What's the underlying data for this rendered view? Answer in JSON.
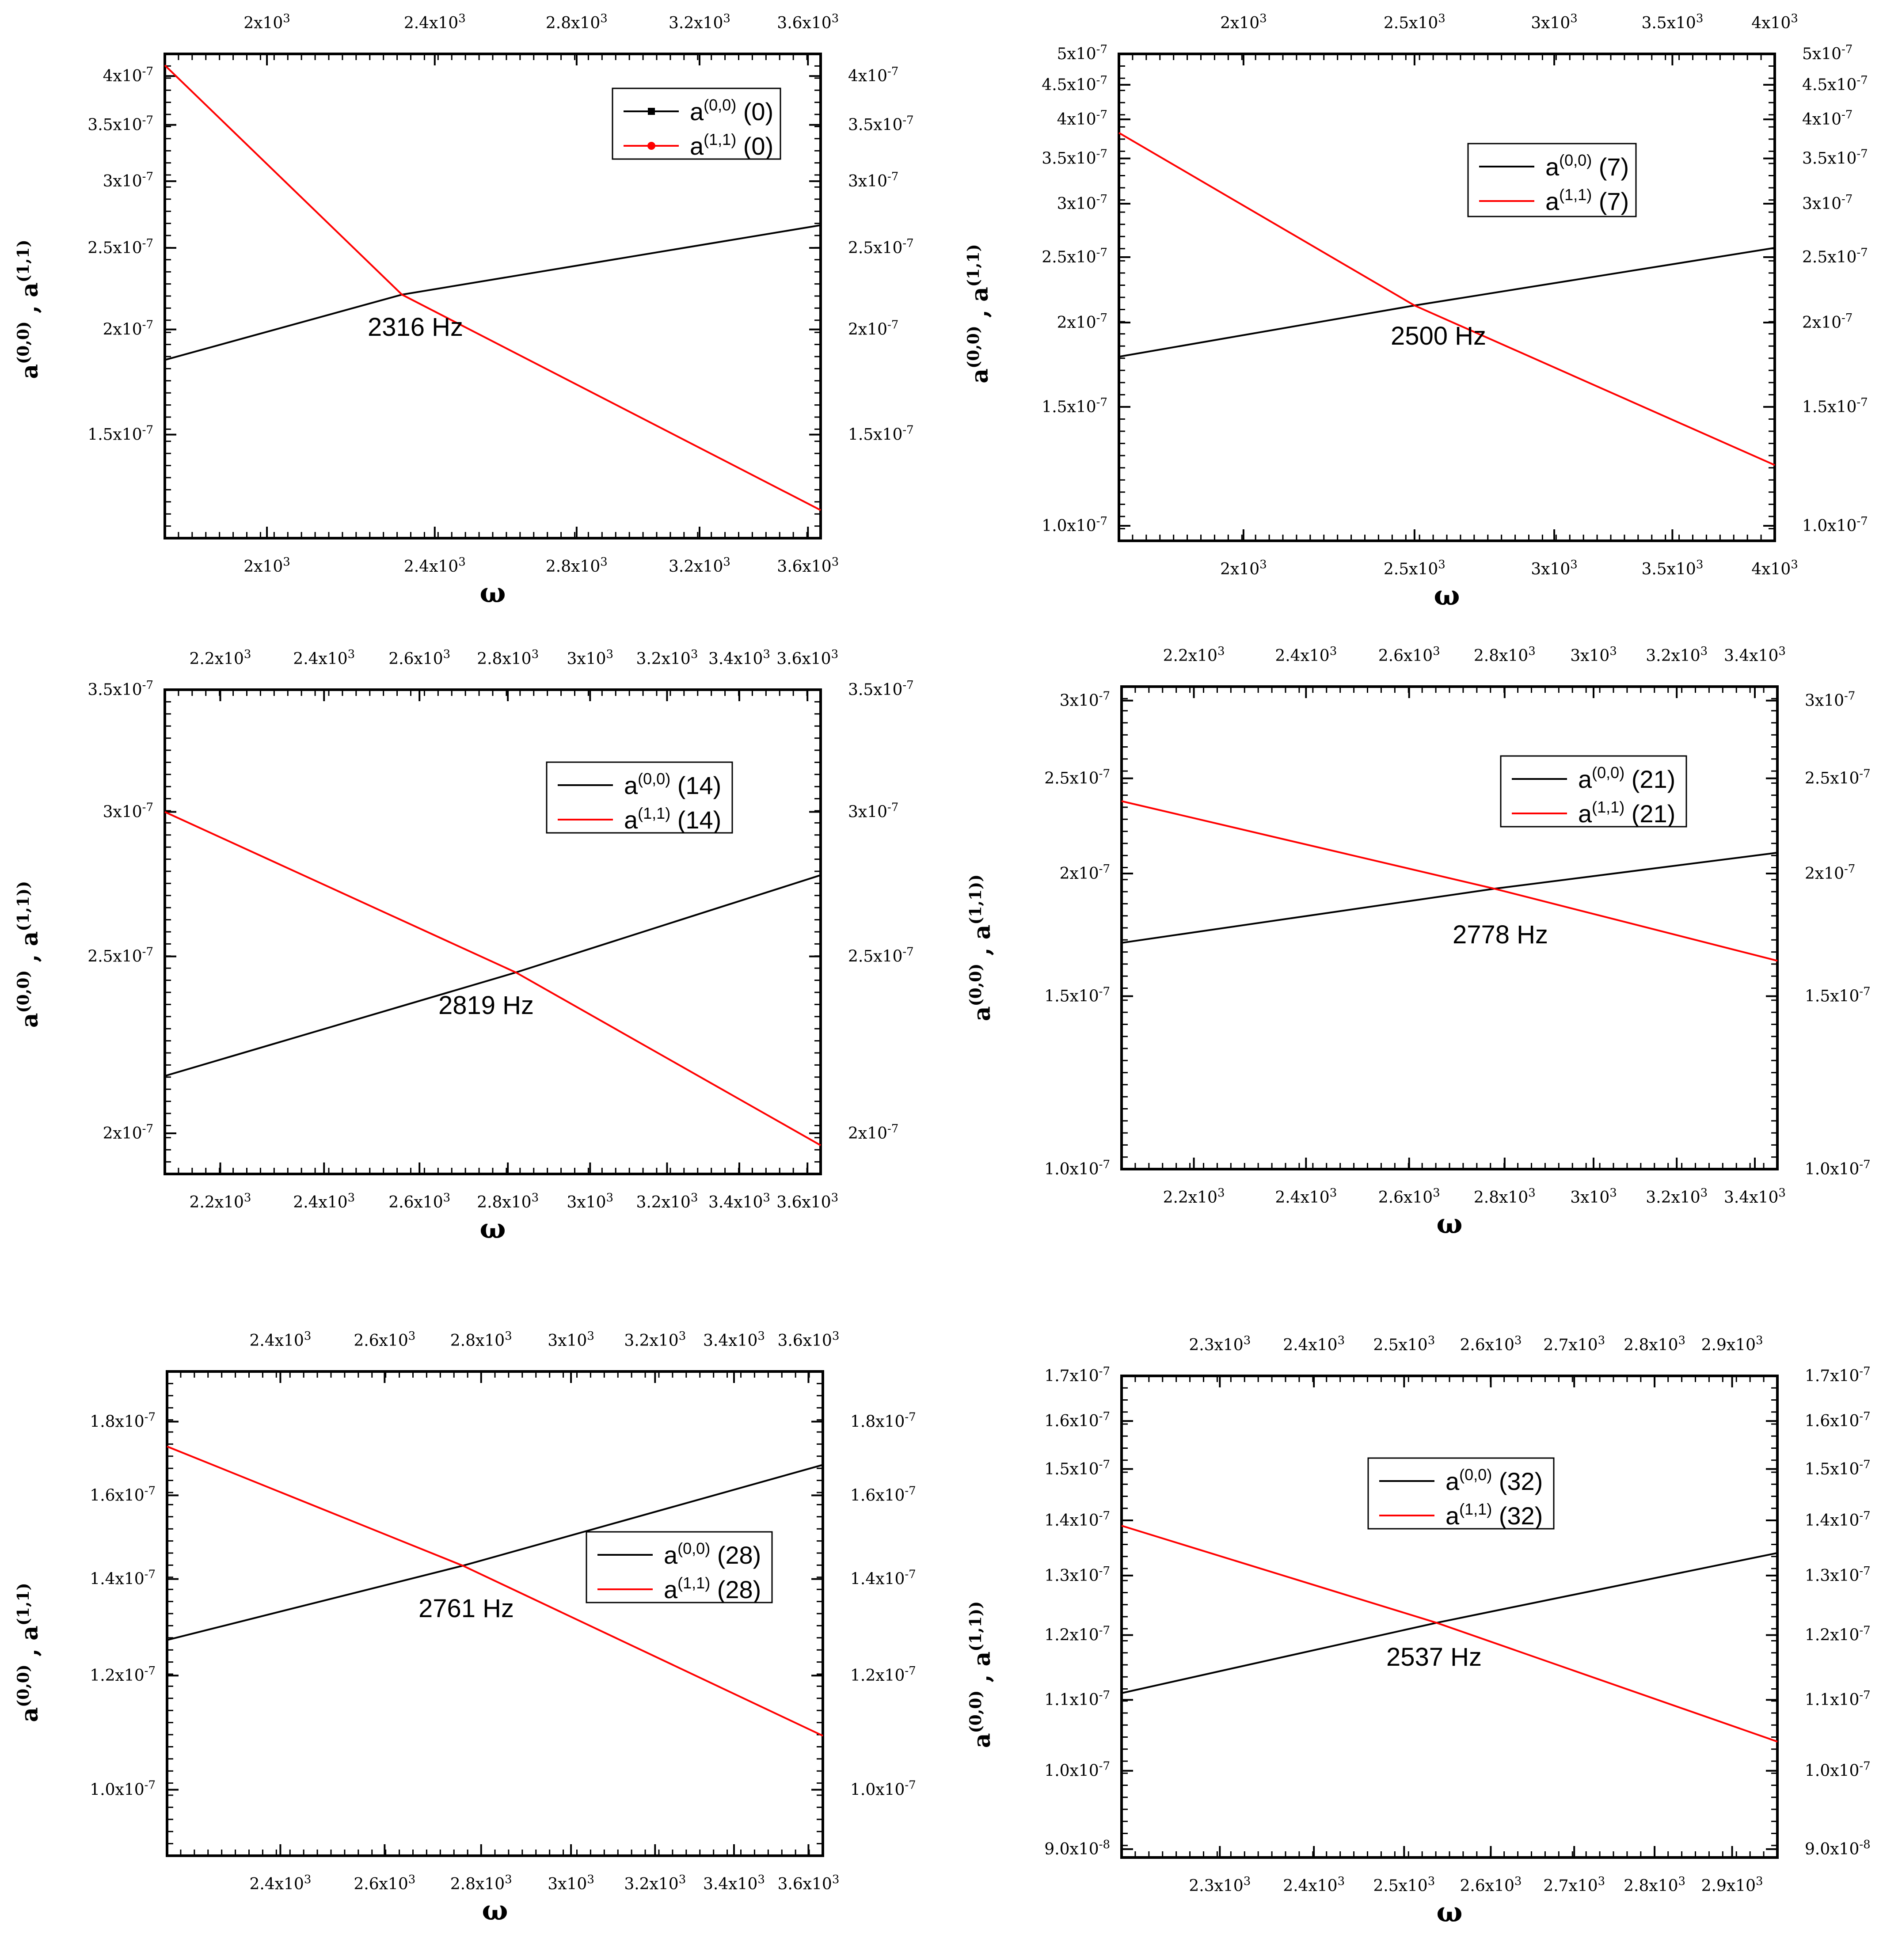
{
  "colors": {
    "black_series": "#000000",
    "red_series": "#ff0000",
    "axis": "#000000"
  },
  "chart_data": [
    {
      "type": "line",
      "panel": "top-left",
      "scale": "log-log",
      "xlabel": "ω",
      "ylabel": "a(0,0) , a(1,1)",
      "xlim": [
        1790,
        3650
      ],
      "ylim": [
        1.13e-07,
        4.25e-07
      ],
      "x_ticks": [
        2000,
        2400,
        2800,
        3200,
        3600
      ],
      "x_tick_labels": [
        {
          "m": "2x10",
          "e": "3"
        },
        {
          "m": "2.4x10",
          "e": "3"
        },
        {
          "m": "2.8x10",
          "e": "3"
        },
        {
          "m": "3.2x10",
          "e": "3"
        },
        {
          "m": "3.6x10",
          "e": "3"
        }
      ],
      "y_ticks": [
        1.5e-07,
        2e-07,
        2.5e-07,
        3e-07,
        3.5e-07,
        4e-07
      ],
      "y_tick_labels": [
        {
          "m": "1.5x10",
          "e": "-7"
        },
        {
          "m": "2x10",
          "e": "-7"
        },
        {
          "m": "2.5x10",
          "e": "-7"
        },
        {
          "m": "3x10",
          "e": "-7"
        },
        {
          "m": "3.5x10",
          "e": "-7"
        },
        {
          "m": "4x10",
          "e": "-7"
        }
      ],
      "series": [
        {
          "name": "a(0,0) (0)",
          "color": "#000000",
          "marker": "square",
          "x": [
            1790,
            2316,
            3650
          ],
          "y": [
            1.84e-07,
            2.2e-07,
            2.66e-07
          ]
        },
        {
          "name": "a(1,1) (0)",
          "color": "#ff0000",
          "marker": "circle",
          "x": [
            1790,
            2316,
            3650
          ],
          "y": [
            4.12e-07,
            2.2e-07,
            1.22e-07
          ]
        }
      ],
      "legend": [
        {
          "base": "a",
          "sup": "(0,0)",
          "suffix": " (0)",
          "color": "#000000"
        },
        {
          "base": "a",
          "sup": "(1,1)",
          "suffix": " (0)",
          "color": "#ff0000"
        }
      ],
      "legend_position": "top-right",
      "annotation": "2316 Hz"
    },
    {
      "type": "line",
      "panel": "top-right",
      "scale": "log-log",
      "xlabel": "ω",
      "ylabel": "a(0,0) , a(1,1)",
      "xlim": [
        1700,
        4000
      ],
      "ylim": [
        9.5e-08,
        5e-07
      ],
      "x_ticks": [
        2000,
        2500,
        3000,
        3500,
        4000
      ],
      "x_tick_labels": [
        {
          "m": "2x10",
          "e": "3"
        },
        {
          "m": "2.5x10",
          "e": "3"
        },
        {
          "m": "3x10",
          "e": "3"
        },
        {
          "m": "3.5x10",
          "e": "3"
        },
        {
          "m": "4x10",
          "e": "3"
        }
      ],
      "y_ticks": [
        1e-07,
        1.5e-07,
        2e-07,
        2.5e-07,
        3e-07,
        3.5e-07,
        4e-07,
        4.5e-07,
        5e-07
      ],
      "y_tick_labels": [
        {
          "m": "1.0x10",
          "e": "-7"
        },
        {
          "m": "1.5x10",
          "e": "-7"
        },
        {
          "m": "2x10",
          "e": "-7"
        },
        {
          "m": "2.5x10",
          "e": "-7"
        },
        {
          "m": "3x10",
          "e": "-7"
        },
        {
          "m": "3.5x10",
          "e": "-7"
        },
        {
          "m": "4x10",
          "e": "-7"
        },
        {
          "m": "4.5x10",
          "e": "-7"
        },
        {
          "m": "5x10",
          "e": "-7"
        }
      ],
      "series": [
        {
          "name": "a(0,0) (7)",
          "color": "#000000",
          "x": [
            1700,
            2500,
            4000
          ],
          "y": [
            1.78e-07,
            2.12e-07,
            2.58e-07
          ]
        },
        {
          "name": "a(1,1) (7)",
          "color": "#ff0000",
          "x": [
            1700,
            2500,
            4000
          ],
          "y": [
            3.82e-07,
            2.12e-07,
            1.23e-07
          ]
        }
      ],
      "legend": [
        {
          "base": "a",
          "sup": "(0,0)",
          "suffix": " (7)",
          "color": "#000000"
        },
        {
          "base": "a",
          "sup": "(1,1)",
          "suffix": " (7)",
          "color": "#ff0000"
        }
      ],
      "legend_position": "top-right",
      "annotation": "2500 Hz"
    },
    {
      "type": "line",
      "panel": "middle-left",
      "scale": "log-log",
      "xlabel": "ω",
      "ylabel": "a(0,0) , a(1,1))",
      "xlim": [
        2100,
        3640
      ],
      "ylim": [
        1.9e-07,
        3.5e-07
      ],
      "x_ticks": [
        2200,
        2400,
        2600,
        2800,
        3000,
        3200,
        3400,
        3600
      ],
      "x_tick_labels": [
        {
          "m": "2.2x10",
          "e": "3"
        },
        {
          "m": "2.4x10",
          "e": "3"
        },
        {
          "m": "2.6x10",
          "e": "3"
        },
        {
          "m": "2.8x10",
          "e": "3"
        },
        {
          "m": "3x10",
          "e": "3"
        },
        {
          "m": "3.2x10",
          "e": "3"
        },
        {
          "m": "3.4x10",
          "e": "3"
        },
        {
          "m": "3.6x10",
          "e": "3"
        }
      ],
      "y_ticks": [
        2e-07,
        2.5e-07,
        3e-07,
        3.5e-07
      ],
      "y_tick_labels": [
        {
          "m": "2x10",
          "e": "-7"
        },
        {
          "m": "2.5x10",
          "e": "-7"
        },
        {
          "m": "3x10",
          "e": "-7"
        },
        {
          "m": "3.5x10",
          "e": "-7"
        }
      ],
      "series": [
        {
          "name": "a(0,0) (14)",
          "color": "#000000",
          "x": [
            2100,
            2819,
            3640
          ],
          "y": [
            2.15e-07,
            2.45e-07,
            2.77e-07
          ]
        },
        {
          "name": "a(1,1) (14)",
          "color": "#ff0000",
          "x": [
            2100,
            2819,
            3640
          ],
          "y": [
            3e-07,
            2.45e-07,
            1.97e-07
          ]
        }
      ],
      "legend": [
        {
          "base": "a",
          "sup": "(0,0)",
          "suffix": " (14)",
          "color": "#000000"
        },
        {
          "base": "a",
          "sup": "(1,1)",
          "suffix": " (14)",
          "color": "#ff0000"
        }
      ],
      "legend_position": "top-right",
      "annotation": "2819 Hz"
    },
    {
      "type": "line",
      "panel": "middle-right",
      "scale": "log-log",
      "xlabel": "ω",
      "ylabel": "a(0,0) , a(1,1))",
      "xlim": [
        2080,
        3460
      ],
      "ylim": [
        1e-07,
        3.1e-07
      ],
      "x_ticks": [
        2200,
        2400,
        2600,
        2800,
        3000,
        3200,
        3400
      ],
      "x_tick_labels": [
        {
          "m": "2.2x10",
          "e": "3"
        },
        {
          "m": "2.4x10",
          "e": "3"
        },
        {
          "m": "2.6x10",
          "e": "3"
        },
        {
          "m": "2.8x10",
          "e": "3"
        },
        {
          "m": "3x10",
          "e": "3"
        },
        {
          "m": "3.2x10",
          "e": "3"
        },
        {
          "m": "3.4x10",
          "e": "3"
        }
      ],
      "y_ticks": [
        1e-07,
        1.5e-07,
        2e-07,
        2.5e-07,
        3e-07
      ],
      "y_tick_labels": [
        {
          "m": "1.0x10",
          "e": "-7"
        },
        {
          "m": "1.5x10",
          "e": "-7"
        },
        {
          "m": "2x10",
          "e": "-7"
        },
        {
          "m": "2.5x10",
          "e": "-7"
        },
        {
          "m": "3x10",
          "e": "-7"
        }
      ],
      "series": [
        {
          "name": "a(0,0) (21)",
          "color": "#000000",
          "x": [
            2080,
            2778,
            3460
          ],
          "y": [
            1.7e-07,
            1.93e-07,
            2.1e-07
          ]
        },
        {
          "name": "a(1,1) (21)",
          "color": "#ff0000",
          "x": [
            2080,
            2778,
            3460
          ],
          "y": [
            2.37e-07,
            1.93e-07,
            1.63e-07
          ]
        }
      ],
      "legend": [
        {
          "base": "a",
          "sup": "(0,0)",
          "suffix": " (21)",
          "color": "#000000"
        },
        {
          "base": "a",
          "sup": "(1,1)",
          "suffix": " (21)",
          "color": "#ff0000"
        }
      ],
      "legend_position": "top-right",
      "annotation": "2778 Hz"
    },
    {
      "type": "line",
      "panel": "bottom-left",
      "scale": "log-log",
      "xlabel": "ω",
      "ylabel": "a(0,0) , a(1,1)",
      "xlim": [
        2200,
        3640
      ],
      "ylim": [
        9e-08,
        1.95e-07
      ],
      "x_ticks": [
        2400,
        2600,
        2800,
        3000,
        3200,
        3400,
        3600
      ],
      "x_tick_labels": [
        {
          "m": "2.4x10",
          "e": "3"
        },
        {
          "m": "2.6x10",
          "e": "3"
        },
        {
          "m": "2.8x10",
          "e": "3"
        },
        {
          "m": "3x10",
          "e": "3"
        },
        {
          "m": "3.2x10",
          "e": "3"
        },
        {
          "m": "3.4x10",
          "e": "3"
        },
        {
          "m": "3.6x10",
          "e": "3"
        }
      ],
      "y_ticks": [
        1e-07,
        1.2e-07,
        1.4e-07,
        1.6e-07,
        1.8e-07
      ],
      "y_tick_labels": [
        {
          "m": "1.0x10",
          "e": "-7"
        },
        {
          "m": "1.2x10",
          "e": "-7"
        },
        {
          "m": "1.4x10",
          "e": "-7"
        },
        {
          "m": "1.6x10",
          "e": "-7"
        },
        {
          "m": "1.8x10",
          "e": "-7"
        }
      ],
      "series": [
        {
          "name": "a(0,0) (28)",
          "color": "#000000",
          "x": [
            2200,
            2761,
            3640
          ],
          "y": [
            1.27e-07,
            1.43e-07,
            1.68e-07
          ]
        },
        {
          "name": "a(1,1) (28)",
          "color": "#ff0000",
          "x": [
            2200,
            2761,
            3640
          ],
          "y": [
            1.73e-07,
            1.43e-07,
            1.09e-07
          ]
        }
      ],
      "legend": [
        {
          "base": "a",
          "sup": "(0,0)",
          "suffix": " (28)",
          "color": "#000000"
        },
        {
          "base": "a",
          "sup": "(1,1)",
          "suffix": " (28)",
          "color": "#ff0000"
        }
      ],
      "legend_position": "right",
      "annotation": "2761 Hz"
    },
    {
      "type": "line",
      "panel": "bottom-right",
      "scale": "log-log",
      "xlabel": "ω",
      "ylabel": "a(0,0) , a(1,1))",
      "xlim": [
        2200,
        2960
      ],
      "ylim": [
        8.9e-08,
        1.7e-07
      ],
      "x_ticks": [
        2300,
        2400,
        2500,
        2600,
        2700,
        2800,
        2900
      ],
      "x_tick_labels": [
        {
          "m": "2.3x10",
          "e": "3"
        },
        {
          "m": "2.4x10",
          "e": "3"
        },
        {
          "m": "2.5x10",
          "e": "3"
        },
        {
          "m": "2.6x10",
          "e": "3"
        },
        {
          "m": "2.7x10",
          "e": "3"
        },
        {
          "m": "2.8x10",
          "e": "3"
        },
        {
          "m": "2.9x10",
          "e": "3"
        }
      ],
      "y_ticks": [
        9e-08,
        1e-07,
        1.1e-07,
        1.2e-07,
        1.3e-07,
        1.4e-07,
        1.5e-07,
        1.6e-07,
        1.7e-07
      ],
      "y_tick_labels": [
        {
          "m": "9.0x10",
          "e": "-8"
        },
        {
          "m": "1.0x10",
          "e": "-7"
        },
        {
          "m": "1.1x10",
          "e": "-7"
        },
        {
          "m": "1.2x10",
          "e": "-7"
        },
        {
          "m": "1.3x10",
          "e": "-7"
        },
        {
          "m": "1.4x10",
          "e": "-7"
        },
        {
          "m": "1.5x10",
          "e": "-7"
        },
        {
          "m": "1.6x10",
          "e": "-7"
        },
        {
          "m": "1.7x10",
          "e": "-7"
        }
      ],
      "series": [
        {
          "name": "a(0,0) (32)",
          "color": "#000000",
          "x": [
            2200,
            2537,
            2960
          ],
          "y": [
            1.11e-07,
            1.22e-07,
            1.34e-07
          ]
        },
        {
          "name": "a(1,1) (32)",
          "color": "#ff0000",
          "x": [
            2200,
            2537,
            2960
          ],
          "y": [
            1.39e-07,
            1.22e-07,
            1.04e-07
          ]
        }
      ],
      "legend": [
        {
          "base": "a",
          "sup": "(0,0)",
          "suffix": " (32)",
          "color": "#000000"
        },
        {
          "base": "a",
          "sup": "(1,1)",
          "suffix": " (32)",
          "color": "#ff0000"
        }
      ],
      "legend_position": "top-right",
      "annotation": "2537 Hz"
    }
  ]
}
